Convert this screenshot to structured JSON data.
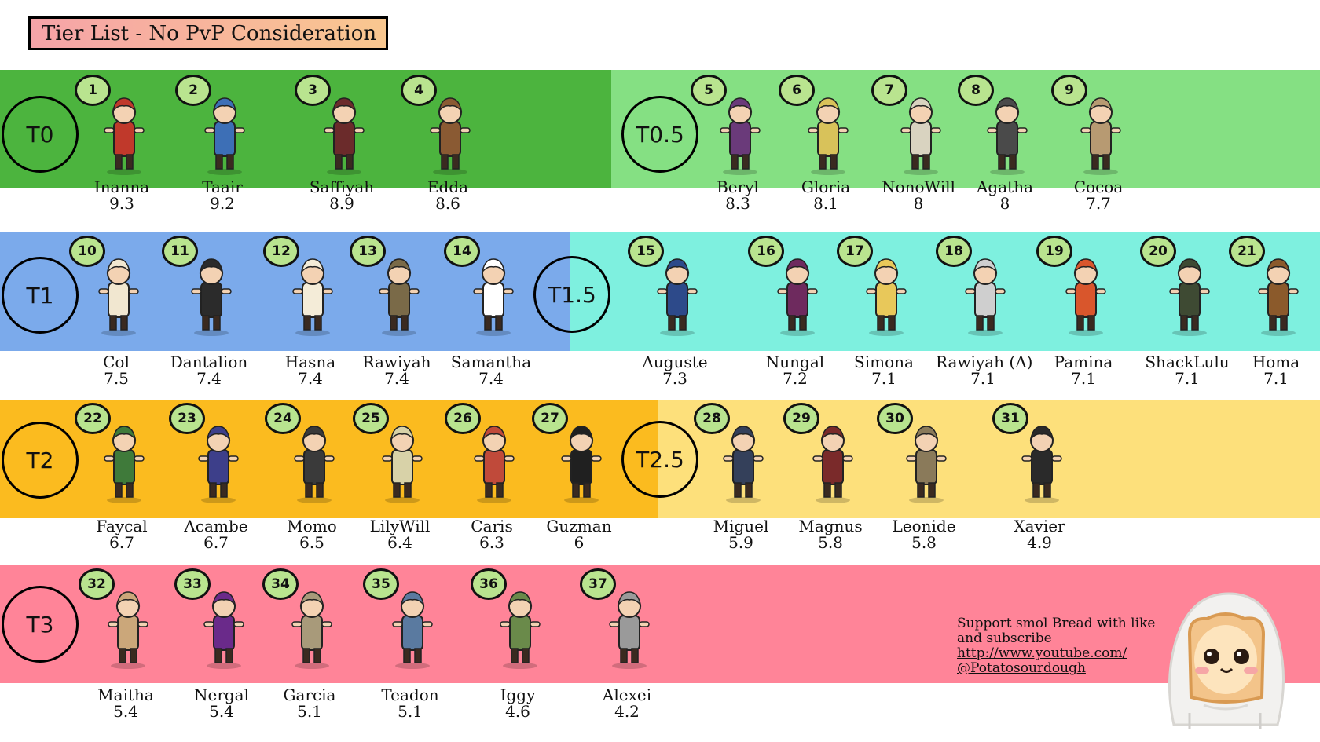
{
  "title": "Tier List - No PvP Consideration",
  "tiers": [
    {
      "label": "T0",
      "color": "#4cb43e"
    },
    {
      "label": "T0.5",
      "color": "#85e083"
    },
    {
      "label": "T1",
      "color": "#7baaeb"
    },
    {
      "label": "T1.5",
      "color": "#7ef0df"
    },
    {
      "label": "T2",
      "color": "#fbbb1f"
    },
    {
      "label": "T2.5",
      "color": "#fde07b"
    },
    {
      "label": "T3",
      "color": "#ff8498"
    }
  ],
  "characters": [
    {
      "rank": "1",
      "name": "Inanna",
      "score": "9.3"
    },
    {
      "rank": "2",
      "name": "Taair",
      "score": "9.2"
    },
    {
      "rank": "3",
      "name": "Saffiyah",
      "score": "8.9"
    },
    {
      "rank": "4",
      "name": "Edda",
      "score": "8.6"
    },
    {
      "rank": "5",
      "name": "Beryl",
      "score": "8.3"
    },
    {
      "rank": "6",
      "name": "Gloria",
      "score": "8.1"
    },
    {
      "rank": "7",
      "name": "NonoWill",
      "score": "8"
    },
    {
      "rank": "8",
      "name": "Agatha",
      "score": "8"
    },
    {
      "rank": "9",
      "name": "Cocoa",
      "score": "7.7"
    },
    {
      "rank": "10",
      "name": "Col",
      "score": "7.5"
    },
    {
      "rank": "11",
      "name": "Dantalion",
      "score": "7.4"
    },
    {
      "rank": "12",
      "name": "Hasna",
      "score": "7.4"
    },
    {
      "rank": "13",
      "name": "Rawiyah",
      "score": "7.4"
    },
    {
      "rank": "14",
      "name": "Samantha",
      "score": "7.4"
    },
    {
      "rank": "15",
      "name": "Auguste",
      "score": "7.3"
    },
    {
      "rank": "16",
      "name": "Nungal",
      "score": "7.2"
    },
    {
      "rank": "17",
      "name": "Simona",
      "score": "7.1"
    },
    {
      "rank": "18",
      "name": "Rawiyah (A)",
      "score": "7.1"
    },
    {
      "rank": "19",
      "name": "Pamina",
      "score": "7.1"
    },
    {
      "rank": "20",
      "name": "ShackLulu",
      "score": "7.1"
    },
    {
      "rank": "21",
      "name": "Homa",
      "score": "7.1"
    },
    {
      "rank": "22",
      "name": "Faycal",
      "score": "6.7"
    },
    {
      "rank": "23",
      "name": "Acambe",
      "score": "6.7"
    },
    {
      "rank": "24",
      "name": "Momo",
      "score": "6.5"
    },
    {
      "rank": "25",
      "name": "LilyWill",
      "score": "6.4"
    },
    {
      "rank": "26",
      "name": "Caris",
      "score": "6.3"
    },
    {
      "rank": "27",
      "name": "Guzman",
      "score": "6"
    },
    {
      "rank": "28",
      "name": "Miguel",
      "score": "5.9"
    },
    {
      "rank": "29",
      "name": "Magnus",
      "score": "5.8"
    },
    {
      "rank": "30",
      "name": "Leonide",
      "score": "5.8"
    },
    {
      "rank": "31",
      "name": "Xavier",
      "score": "4.9"
    },
    {
      "rank": "32",
      "name": "Maitha",
      "score": "5.4"
    },
    {
      "rank": "33",
      "name": "Nergal",
      "score": "5.4"
    },
    {
      "rank": "34",
      "name": "Garcia",
      "score": "5.1"
    },
    {
      "rank": "35",
      "name": "Teadon",
      "score": "5.1"
    },
    {
      "rank": "36",
      "name": "Iggy",
      "score": "4.6"
    },
    {
      "rank": "37",
      "name": "Alexei",
      "score": "4.2"
    }
  ],
  "sprite_colors": [
    "#c0392b",
    "#3d6fb6",
    "#6b2b2b",
    "#8a5a33",
    "#6a3a7a",
    "#d8c25a",
    "#d9d3c0",
    "#4a4a4a",
    "#b79a72",
    "#f1e7d0",
    "#2b2b2b",
    "#f4ecd8",
    "#7a6a48",
    "#ffffff",
    "#2d4a8a",
    "#6e2a5e",
    "#e8c85a",
    "#cfcfcf",
    "#d9562c",
    "#3e4a33",
    "#8b5a2b",
    "#3f7a3a",
    "#3d3f8a",
    "#3a3a3a",
    "#d8d2a8",
    "#c04a3a",
    "#202020",
    "#34405a",
    "#7a2a2a",
    "#8a7a5a",
    "#2a2a2a",
    "#cba77a",
    "#6a2a8a",
    "#a89a7a",
    "#5a7aa0",
    "#6a8a4a",
    "#9a9a9a"
  ],
  "support": {
    "line1": "Support smol Bread with like",
    "line2": "and subscribe",
    "link1": "http://www.youtube.com/",
    "link2": "@Potatosourdough"
  }
}
